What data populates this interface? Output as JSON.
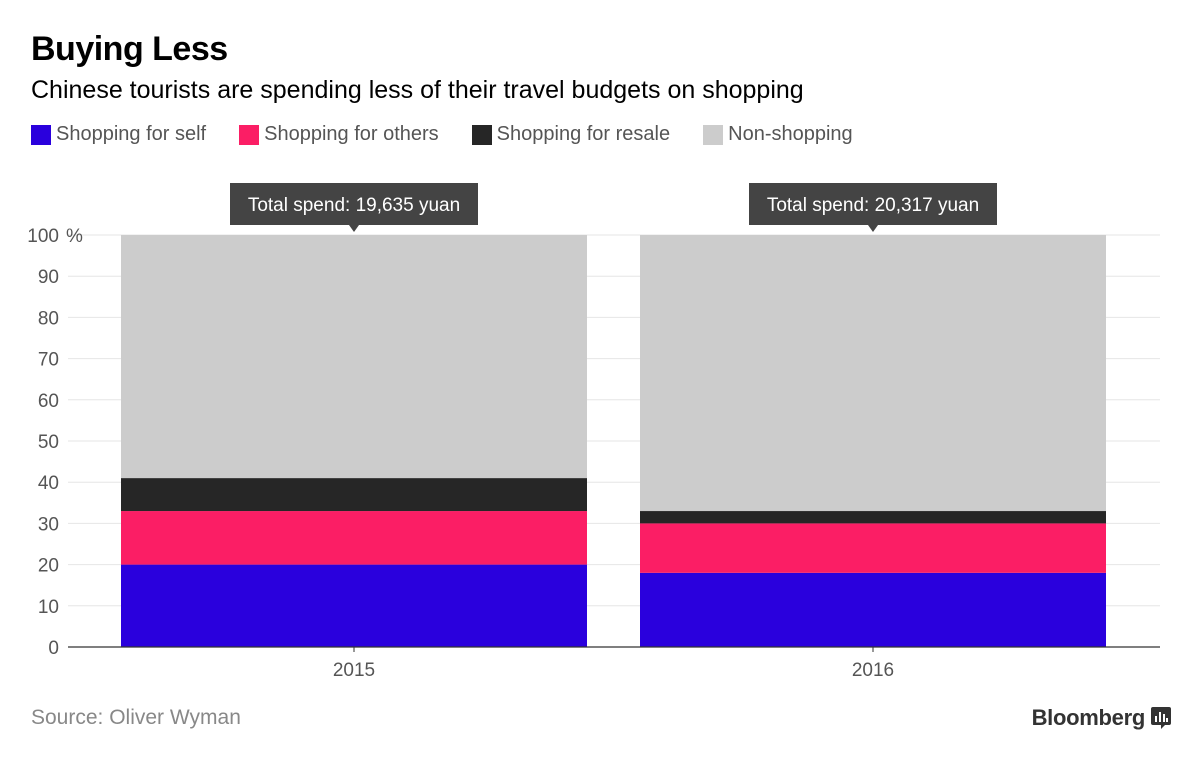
{
  "header": {
    "title": "Buying Less",
    "subtitle": "Chinese tourists are spending less of their travel budgets on shopping"
  },
  "footer": {
    "source": "Source: Oliver Wyman",
    "brand": "Bloomberg",
    "brand_icon": "bar-chart-icon"
  },
  "chart_data": {
    "type": "bar",
    "stacked": true,
    "categories": [
      "2015",
      "2016"
    ],
    "series": [
      {
        "name": "Shopping for self",
        "color": "#2a00dd",
        "values": [
          20,
          18
        ]
      },
      {
        "name": "Shopping for others",
        "color": "#fb1e65",
        "values": [
          13,
          12
        ]
      },
      {
        "name": "Shopping for resale",
        "color": "#262626",
        "values": [
          8,
          3
        ]
      },
      {
        "name": "Non-shopping",
        "color": "#cccccc",
        "values": [
          59,
          67
        ]
      }
    ],
    "annotations": [
      "Total spend: 19,635 yuan",
      "Total spend: 20,317 yuan"
    ],
    "ylim": [
      0,
      100
    ],
    "yticks": [
      0,
      10,
      20,
      30,
      40,
      50,
      60,
      70,
      80,
      90,
      100
    ],
    "yunit": "%",
    "grid": true,
    "legend": "top-left"
  }
}
